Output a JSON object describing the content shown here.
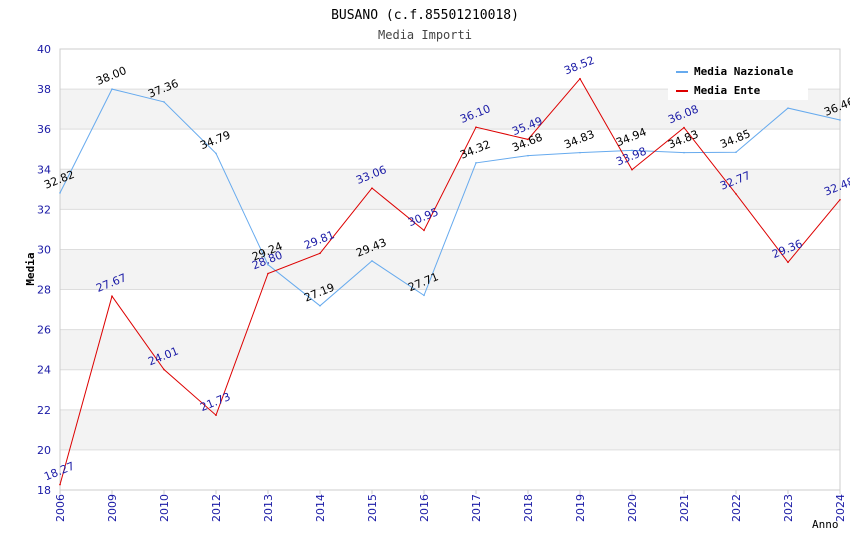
{
  "chart_data": {
    "type": "line",
    "title": "BUSANO (c.f.85501210018)",
    "subtitle": "Media Importi",
    "xlabel": "Anno",
    "ylabel": "Media",
    "ylim": [
      18,
      40
    ],
    "yticks": [
      "18",
      "20",
      "22",
      "24",
      "26",
      "28",
      "30",
      "32",
      "34",
      "36",
      "38",
      "40"
    ],
    "categories": [
      "2006",
      "2009",
      "2010",
      "2012",
      "2013",
      "2014",
      "2015",
      "2016",
      "2017",
      "2018",
      "2019",
      "2020",
      "2021",
      "2022",
      "2023",
      "2024"
    ],
    "legend_position": "top-right",
    "series": [
      {
        "name": "Media Nazionale",
        "color": "#66aaee",
        "label_color": "#000000",
        "values": [
          32.82,
          38.0,
          37.36,
          34.79,
          29.24,
          27.19,
          29.43,
          27.71,
          34.32,
          34.68,
          34.83,
          34.94,
          34.83,
          34.85,
          null,
          36.46
        ],
        "labels": [
          "32.82",
          "38.00",
          "37.36",
          "34.79",
          "29.24",
          "27.19",
          "29.43",
          "27.71",
          "34.32",
          "34.68",
          "34.83",
          "34.94",
          "34.83",
          "34.85",
          "",
          "36.46"
        ],
        "line_values": [
          32.82,
          38.0,
          37.36,
          34.79,
          29.24,
          27.19,
          29.43,
          27.71,
          34.32,
          34.68,
          34.83,
          34.94,
          34.83,
          34.85,
          37.05,
          36.46
        ]
      },
      {
        "name": "Media Ente",
        "color": "#dd0000",
        "label_color": "#1a1aa6",
        "values": [
          18.27,
          27.67,
          24.01,
          21.73,
          28.8,
          29.81,
          33.06,
          30.95,
          36.1,
          35.49,
          38.52,
          33.98,
          36.08,
          32.77,
          29.36,
          32.48
        ],
        "labels": [
          "18.27",
          "27.67",
          "24.01",
          "21.73",
          "28.80",
          "29.81",
          "33.06",
          "30.95",
          "36.10",
          "35.49",
          "38.52",
          "33.98",
          "36.08",
          "32.77",
          "29.36",
          "32.48"
        ],
        "line_values": [
          18.27,
          27.67,
          24.01,
          21.73,
          28.8,
          29.81,
          33.06,
          30.95,
          36.1,
          35.49,
          38.52,
          33.98,
          36.08,
          32.77,
          29.36,
          32.48
        ]
      }
    ]
  }
}
